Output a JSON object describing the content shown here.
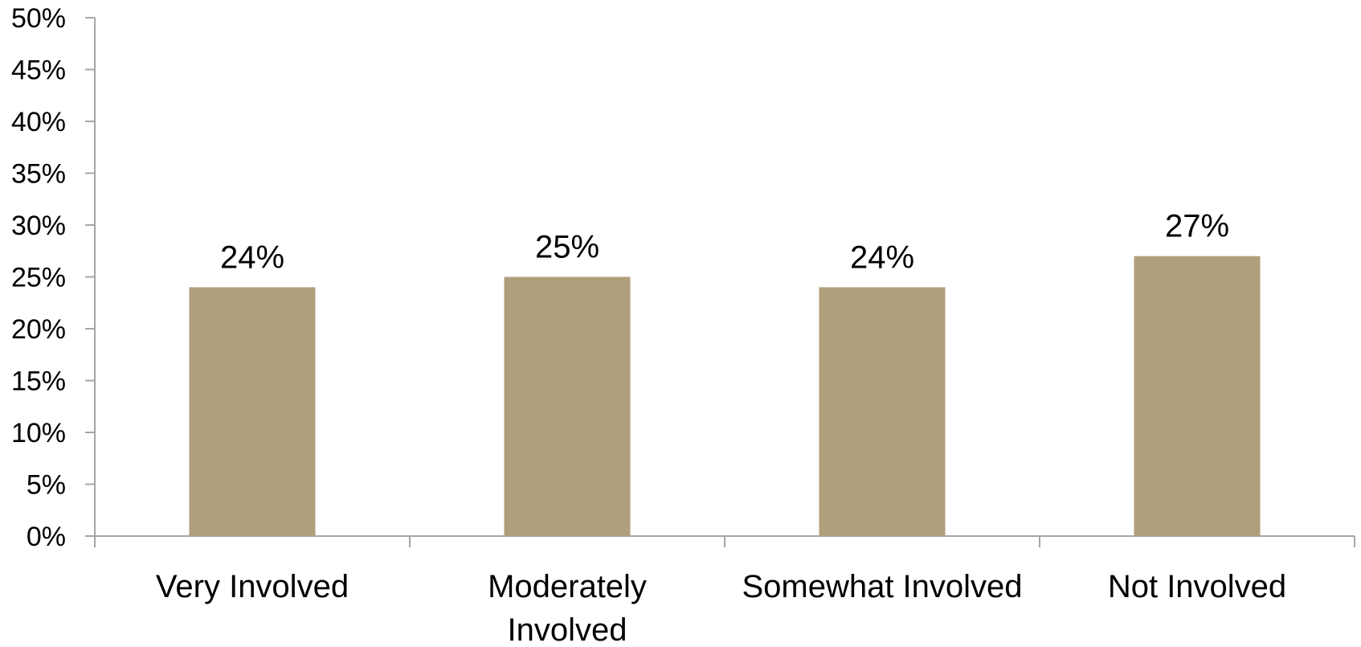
{
  "chart_data": {
    "type": "bar",
    "title": "",
    "xlabel": "",
    "ylabel": "",
    "categories": [
      [
        "Very Involved"
      ],
      [
        "Moderately",
        "Involved"
      ],
      [
        "Somewhat Involved"
      ],
      [
        "Not Involved"
      ]
    ],
    "values": [
      24,
      25,
      24,
      27
    ],
    "data_labels": [
      "24%",
      "25%",
      "24%",
      "27%"
    ],
    "ylim": [
      0,
      50
    ],
    "y_ticks": [
      0,
      5,
      10,
      15,
      20,
      25,
      30,
      35,
      40,
      45,
      50
    ],
    "y_tick_labels": [
      "0%",
      "5%",
      "10%",
      "15%",
      "20%",
      "25%",
      "30%",
      "35%",
      "40%",
      "45%",
      "50%"
    ],
    "grid": false,
    "legend": "none",
    "bar_color": "#B09E7C",
    "axis_color": "#A6A6A6"
  }
}
